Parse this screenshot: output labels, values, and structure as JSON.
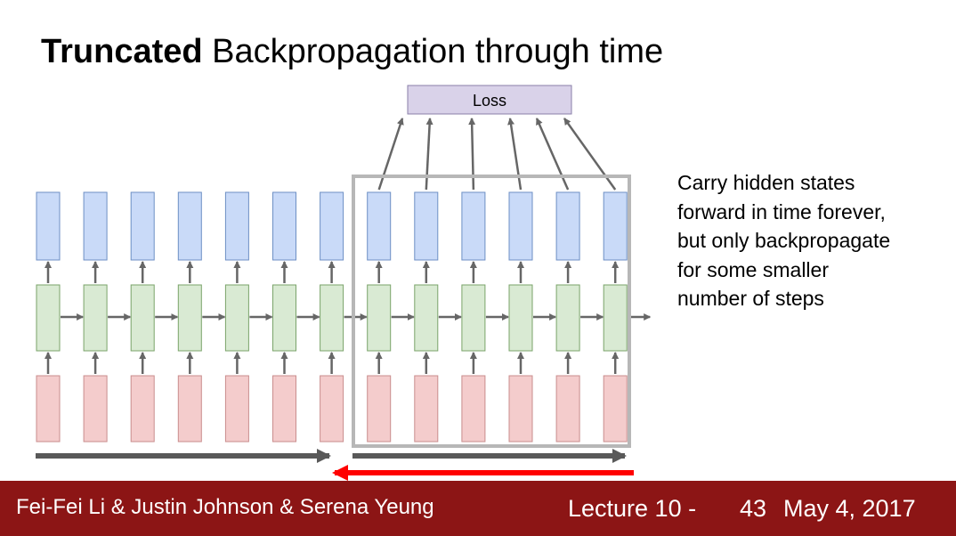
{
  "slide": {
    "title_bold": "Truncated",
    "title_rest": " Backpropagation through time",
    "loss_label": "Loss",
    "note_lines": [
      "Carry hidden states",
      "forward in time forever,",
      "but only backpropagate",
      "for some smaller",
      "number of steps"
    ]
  },
  "diagram": {
    "timesteps_total": 13,
    "truncated_window_timesteps": 6,
    "colors": {
      "output_fill": "#c9daf8",
      "output_stroke": "#6d8fc4",
      "hidden_fill": "#d9ead3",
      "hidden_stroke": "#7aa36a",
      "input_fill": "#f4cccc",
      "input_stroke": "#c98d8d",
      "loss_fill": "#d9d2e9",
      "loss_stroke": "#8a7fa8",
      "arrow": "#666666",
      "window_frame": "#b7b7b7",
      "forward_bar": "#595959",
      "backward_arrow": "#ff0000"
    }
  },
  "footer": {
    "authors": "Fei-Fei Li & Justin Johnson & Serena Yeung",
    "lecture": "Lecture 10 -",
    "slide_number": "43",
    "date": "May 4, 2017",
    "background": "#8c1515"
  }
}
